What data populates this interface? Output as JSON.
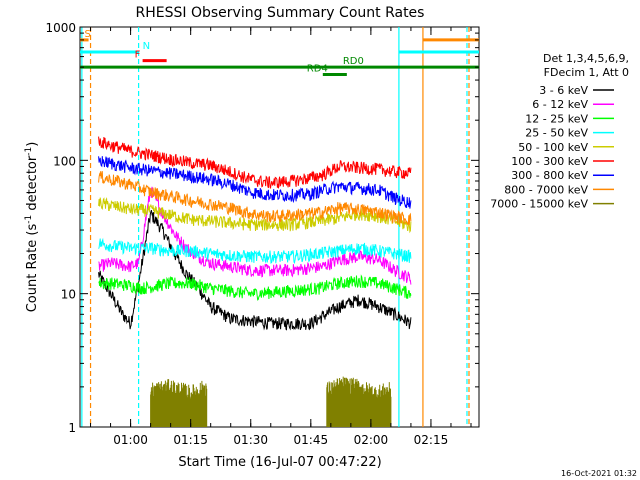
{
  "chart_data": {
    "type": "line",
    "title": "RHESSI Observing Summary Count Rates",
    "xlabel": "Start Time (16-Jul-07 00:47:22)",
    "ylabel": "Count Rate (s⁻¹ detector⁻¹)",
    "ylabel_main": "Count Rate (s",
    "ylabel_sup1": "-1",
    "ylabel_mid": " detector",
    "ylabel_sup2": "-1",
    "ylabel_end": ")",
    "y_scale": "log",
    "ylim": [
      1,
      1000
    ],
    "xlim": [
      "00:47:22",
      "02:27:00"
    ],
    "x_ticks": [
      "01:00",
      "01:15",
      "01:30",
      "01:45",
      "02:00",
      "02:15"
    ],
    "y_ticks": [
      "1",
      "10",
      "100",
      "1000"
    ],
    "legend_header": [
      "Det 1,3,4,5,6,9,",
      "FDecim 1, Att 0"
    ],
    "legend_position": "right",
    "footer": "16-Oct-2021 01:32",
    "series": [
      {
        "name": "3 - 6 keV",
        "color": "#000000",
        "points": [
          [
            "00:52",
            14
          ],
          [
            "00:55",
            10
          ],
          [
            "00:58",
            7
          ],
          [
            "01:00",
            6
          ],
          [
            "01:02",
            12
          ],
          [
            "01:05",
            40
          ],
          [
            "01:08",
            30
          ],
          [
            "01:11",
            20
          ],
          [
            "01:14",
            14
          ],
          [
            "01:17",
            11
          ],
          [
            "01:20",
            8
          ],
          [
            "01:25",
            6.5
          ],
          [
            "01:35",
            6
          ],
          [
            "01:45",
            6
          ],
          [
            "01:52",
            8
          ],
          [
            "01:57",
            9
          ],
          [
            "02:02",
            8
          ],
          [
            "02:06",
            7
          ],
          [
            "02:10",
            6
          ]
        ]
      },
      {
        "name": "6 - 12 keV",
        "color": "#ff00ff",
        "points": [
          [
            "00:52",
            16
          ],
          [
            "00:55",
            17
          ],
          [
            "01:00",
            16
          ],
          [
            "01:02",
            17
          ],
          [
            "01:05",
            60
          ],
          [
            "01:08",
            40
          ],
          [
            "01:11",
            28
          ],
          [
            "01:14",
            22
          ],
          [
            "01:17",
            19
          ],
          [
            "01:20",
            17
          ],
          [
            "01:30",
            15
          ],
          [
            "01:40",
            15
          ],
          [
            "01:48",
            16
          ],
          [
            "01:52",
            18
          ],
          [
            "01:57",
            19
          ],
          [
            "02:02",
            18
          ],
          [
            "02:06",
            15
          ],
          [
            "02:10",
            13
          ]
        ]
      },
      {
        "name": "12 - 25 keV",
        "color": "#00ff00",
        "points": [
          [
            "00:52",
            12
          ],
          [
            "00:55",
            12
          ],
          [
            "01:00",
            11.5
          ],
          [
            "01:03",
            11
          ],
          [
            "01:10",
            12
          ],
          [
            "01:15",
            12
          ],
          [
            "01:20",
            11
          ],
          [
            "01:30",
            10
          ],
          [
            "01:40",
            10.5
          ],
          [
            "01:47",
            11
          ],
          [
            "01:52",
            12
          ],
          [
            "01:57",
            12.5
          ],
          [
            "02:02",
            12
          ],
          [
            "02:06",
            11
          ],
          [
            "02:10",
            10
          ]
        ]
      },
      {
        "name": "25 - 50 keV",
        "color": "#00ffff",
        "points": [
          [
            "00:52",
            24
          ],
          [
            "00:55",
            23
          ],
          [
            "01:00",
            22
          ],
          [
            "01:05",
            22
          ],
          [
            "01:10",
            21
          ],
          [
            "01:15",
            21
          ],
          [
            "01:20",
            20
          ],
          [
            "01:30",
            19
          ],
          [
            "01:40",
            19
          ],
          [
            "01:47",
            20
          ],
          [
            "01:52",
            21
          ],
          [
            "01:57",
            22
          ],
          [
            "02:02",
            21
          ],
          [
            "02:06",
            20
          ],
          [
            "02:10",
            19
          ]
        ]
      },
      {
        "name": "50 - 100 keV",
        "color": "#cccc00",
        "points": [
          [
            "00:52",
            48
          ],
          [
            "00:55",
            46
          ],
          [
            "01:00",
            43
          ],
          [
            "01:05",
            42
          ],
          [
            "01:10",
            39
          ],
          [
            "01:15",
            36
          ],
          [
            "01:20",
            35
          ],
          [
            "01:30",
            33
          ],
          [
            "01:40",
            33
          ],
          [
            "01:47",
            35
          ],
          [
            "01:52",
            37
          ],
          [
            "01:57",
            40
          ],
          [
            "02:02",
            38
          ],
          [
            "02:06",
            35
          ],
          [
            "02:10",
            32
          ]
        ]
      },
      {
        "name": "100 - 300 keV",
        "color": "#ff0000",
        "points": [
          [
            "00:52",
            140
          ],
          [
            "00:55",
            130
          ],
          [
            "01:00",
            118
          ],
          [
            "01:05",
            110
          ],
          [
            "01:10",
            102
          ],
          [
            "01:15",
            96
          ],
          [
            "01:20",
            92
          ],
          [
            "01:25",
            82
          ],
          [
            "01:30",
            72
          ],
          [
            "01:35",
            68
          ],
          [
            "01:40",
            70
          ],
          [
            "01:45",
            74
          ],
          [
            "01:48",
            78
          ],
          [
            "01:52",
            90
          ],
          [
            "01:57",
            88
          ],
          [
            "02:02",
            86
          ],
          [
            "02:06",
            82
          ],
          [
            "02:10",
            80
          ]
        ]
      },
      {
        "name": "300 - 800 keV",
        "color": "#0000ff",
        "points": [
          [
            "00:52",
            100
          ],
          [
            "00:55",
            95
          ],
          [
            "01:00",
            88
          ],
          [
            "01:05",
            84
          ],
          [
            "01:10",
            80
          ],
          [
            "01:15",
            76
          ],
          [
            "01:20",
            72
          ],
          [
            "01:25",
            66
          ],
          [
            "01:30",
            58
          ],
          [
            "01:35",
            55
          ],
          [
            "01:40",
            55
          ],
          [
            "01:45",
            56
          ],
          [
            "01:48",
            60
          ],
          [
            "01:52",
            64
          ],
          [
            "01:57",
            62
          ],
          [
            "02:02",
            60
          ],
          [
            "02:06",
            52
          ],
          [
            "02:10",
            48
          ]
        ]
      },
      {
        "name": "800 - 7000 keV",
        "color": "#ff8800",
        "points": [
          [
            "00:52",
            76
          ],
          [
            "00:55",
            72
          ],
          [
            "01:00",
            66
          ],
          [
            "01:05",
            58
          ],
          [
            "01:10",
            54
          ],
          [
            "01:15",
            50
          ],
          [
            "01:20",
            47
          ],
          [
            "01:25",
            44
          ],
          [
            "01:30",
            40
          ],
          [
            "01:35",
            38
          ],
          [
            "01:40",
            39
          ],
          [
            "01:45",
            40
          ],
          [
            "01:48",
            41
          ],
          [
            "01:52",
            44
          ],
          [
            "01:57",
            43
          ],
          [
            "02:02",
            41
          ],
          [
            "02:06",
            38
          ],
          [
            "02:10",
            36
          ]
        ]
      },
      {
        "name": "7000 - 15000 keV",
        "color": "#808000",
        "points": [
          [
            "01:05",
            1.9
          ],
          [
            "01:10",
            2.0
          ],
          [
            "01:15",
            1.8
          ],
          [
            "01:19",
            2.0
          ],
          [
            "01:49",
            1.9
          ],
          [
            "01:53",
            2.1
          ],
          [
            "01:57",
            2.0
          ],
          [
            "02:01",
            1.8
          ],
          [
            "02:05",
            1.9
          ]
        ]
      }
    ],
    "status_bars": [
      {
        "label": "S",
        "color": "#ff8800",
        "level": 800,
        "start": "00:47:22",
        "end": "00:49:30",
        "label_at": "00:48:30"
      },
      {
        "label": "S",
        "color": "#ff8800",
        "level": 800,
        "start": "02:13",
        "end": "02:27",
        "label_at": ""
      },
      {
        "label": "N",
        "color": "#00ffff",
        "level": 650,
        "start": "00:47:22",
        "end": "01:02",
        "label_at": "01:03"
      },
      {
        "label": "N",
        "color": "#00ffff",
        "level": 650,
        "start": "02:07",
        "end": "02:27",
        "label_at": ""
      },
      {
        "label": "F",
        "color": "#ff0000",
        "level": 560,
        "start": "01:03",
        "end": "01:09",
        "label_at": "01:01"
      },
      {
        "label": "RD0",
        "color": "#008800",
        "level": 500,
        "start": "00:47:22",
        "end": "02:27",
        "label_at": "01:53"
      },
      {
        "label": "RD4",
        "color": "#008800",
        "level": 440,
        "start": "01:48",
        "end": "01:54",
        "label_at": "01:44"
      }
    ],
    "vertical_lines": [
      {
        "time": "00:47:50",
        "color": "#00ffff",
        "style": "solid"
      },
      {
        "time": "00:50:00",
        "color": "#ff8800",
        "style": "dashed"
      },
      {
        "time": "01:02:00",
        "color": "#00ffff",
        "style": "dashed"
      },
      {
        "time": "02:07:00",
        "color": "#00ffff",
        "style": "solid"
      },
      {
        "time": "02:13:00",
        "color": "#ff8800",
        "style": "solid"
      },
      {
        "time": "02:24:00",
        "color": "#00ffff",
        "style": "dashed"
      },
      {
        "time": "02:24:30",
        "color": "#ff8800",
        "style": "dashed"
      }
    ]
  }
}
